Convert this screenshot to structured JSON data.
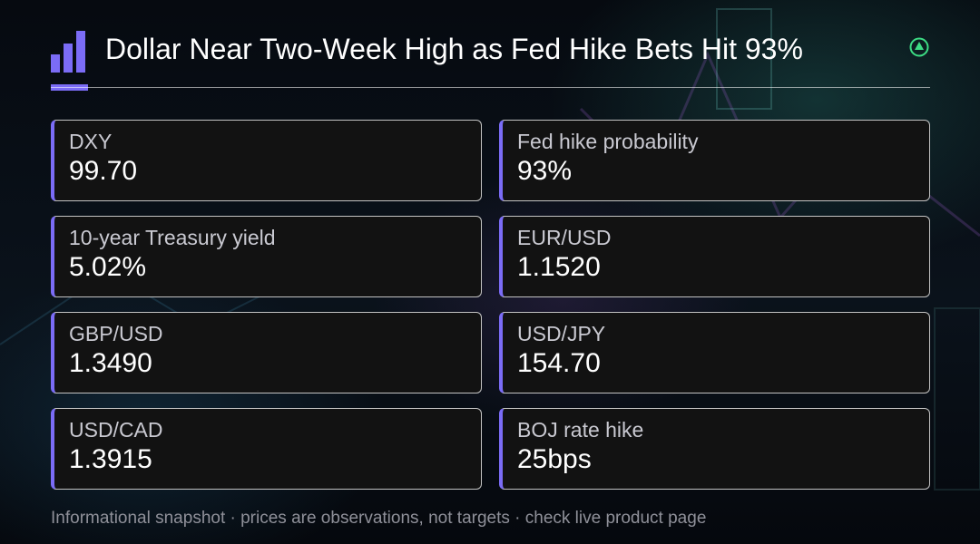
{
  "header": {
    "title": "Dollar Near Two-Week High as Fed Hike Bets Hit 93%",
    "logo_icon": "bar-chart-icon",
    "trend_icon": "up-arrow-circle-icon"
  },
  "colors": {
    "accent": "#7b6cf6",
    "trend": "#3ddc84",
    "card_background": "#121212",
    "page_background": "#05080d"
  },
  "cards": [
    {
      "label": "DXY",
      "value": "99.70"
    },
    {
      "label": "Fed hike probability",
      "value": "93%"
    },
    {
      "label": "10-year Treasury yield",
      "value": "5.02%"
    },
    {
      "label": "EUR/USD",
      "value": "1.1520"
    },
    {
      "label": "GBP/USD",
      "value": "1.3490"
    },
    {
      "label": "USD/JPY",
      "value": "154.70"
    },
    {
      "label": "USD/CAD",
      "value": "1.3915"
    },
    {
      "label": "BOJ rate hike",
      "value": "25bps"
    }
  ],
  "footer": {
    "text": "Informational snapshot · prices are observations, not targets · check live product page"
  }
}
